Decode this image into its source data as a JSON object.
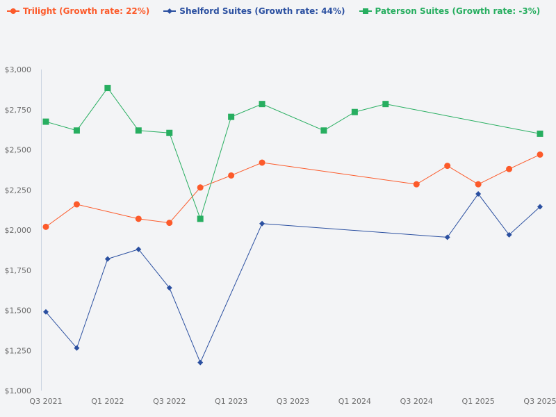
{
  "chart_data": {
    "type": "line",
    "title": "",
    "xlabel": "",
    "ylabel": "",
    "ylim": [
      1000,
      3000
    ],
    "yticks": [
      "$1,000",
      "$1,250",
      "$1,500",
      "$1,750",
      "$2,000",
      "$2,250",
      "$2,500",
      "$2,750",
      "$3,000"
    ],
    "ytick_values": [
      1000,
      1250,
      1500,
      1750,
      2000,
      2250,
      2500,
      2750,
      3000
    ],
    "x_categories": [
      "Q3 2021",
      "Q4 2021",
      "Q1 2022",
      "Q2 2022",
      "Q3 2022",
      "Q4 2022",
      "Q1 2023",
      "Q2 2023",
      "Q3 2023",
      "Q4 2023",
      "Q1 2024",
      "Q2 2024",
      "Q3 2024",
      "Q4 2024",
      "Q1 2025",
      "Q2 2025",
      "Q3 2025"
    ],
    "xticks": [
      "Q3 2021",
      "Q1 2022",
      "Q3 2022",
      "Q1 2023",
      "Q3 2023",
      "Q1 2024",
      "Q3 2024",
      "Q1 2025",
      "Q3 2025"
    ],
    "grid": false,
    "legend_position": "top-left",
    "series": [
      {
        "name": "Trilight (Growth rate: 22%)",
        "color": "#fc5a2a",
        "marker": "circle",
        "points": [
          [
            "Q3 2021",
            2020
          ],
          [
            "Q4 2021",
            2160
          ],
          [
            "Q2 2022",
            2070
          ],
          [
            "Q3 2022",
            2045
          ],
          [
            "Q4 2022",
            2265
          ],
          [
            "Q1 2023",
            2340
          ],
          [
            "Q2 2023",
            2420
          ],
          [
            "Q3 2024",
            2285
          ],
          [
            "Q4 2024",
            2400
          ],
          [
            "Q1 2025",
            2285
          ],
          [
            "Q2 2025",
            2380
          ],
          [
            "Q3 2025",
            2470
          ]
        ]
      },
      {
        "name": "Shelford Suites (Growth rate: 44%)",
        "color": "#2a4fa0",
        "marker": "diamond",
        "points": [
          [
            "Q3 2021",
            1490
          ],
          [
            "Q4 2021",
            1265
          ],
          [
            "Q1 2022",
            1820
          ],
          [
            "Q2 2022",
            1880
          ],
          [
            "Q3 2022",
            1640
          ],
          [
            "Q4 2022",
            1175
          ],
          [
            "Q2 2023",
            2040
          ],
          [
            "Q4 2024",
            1955
          ],
          [
            "Q1 2025",
            2225
          ],
          [
            "Q2 2025",
            1970
          ],
          [
            "Q3 2025",
            2145
          ]
        ]
      },
      {
        "name": "Paterson Suites (Growth rate: -3%)",
        "color": "#27ae60",
        "marker": "square",
        "points": [
          [
            "Q3 2021",
            2675
          ],
          [
            "Q4 2021",
            2620
          ],
          [
            "Q1 2022",
            2885
          ],
          [
            "Q2 2022",
            2620
          ],
          [
            "Q3 2022",
            2605
          ],
          [
            "Q4 2022",
            2070
          ],
          [
            "Q1 2023",
            2705
          ],
          [
            "Q2 2023",
            2785
          ],
          [
            "Q4 2023",
            2620
          ],
          [
            "Q1 2024",
            2735
          ],
          [
            "Q2 2024",
            2785
          ],
          [
            "Q3 2025",
            2600
          ]
        ]
      }
    ]
  }
}
